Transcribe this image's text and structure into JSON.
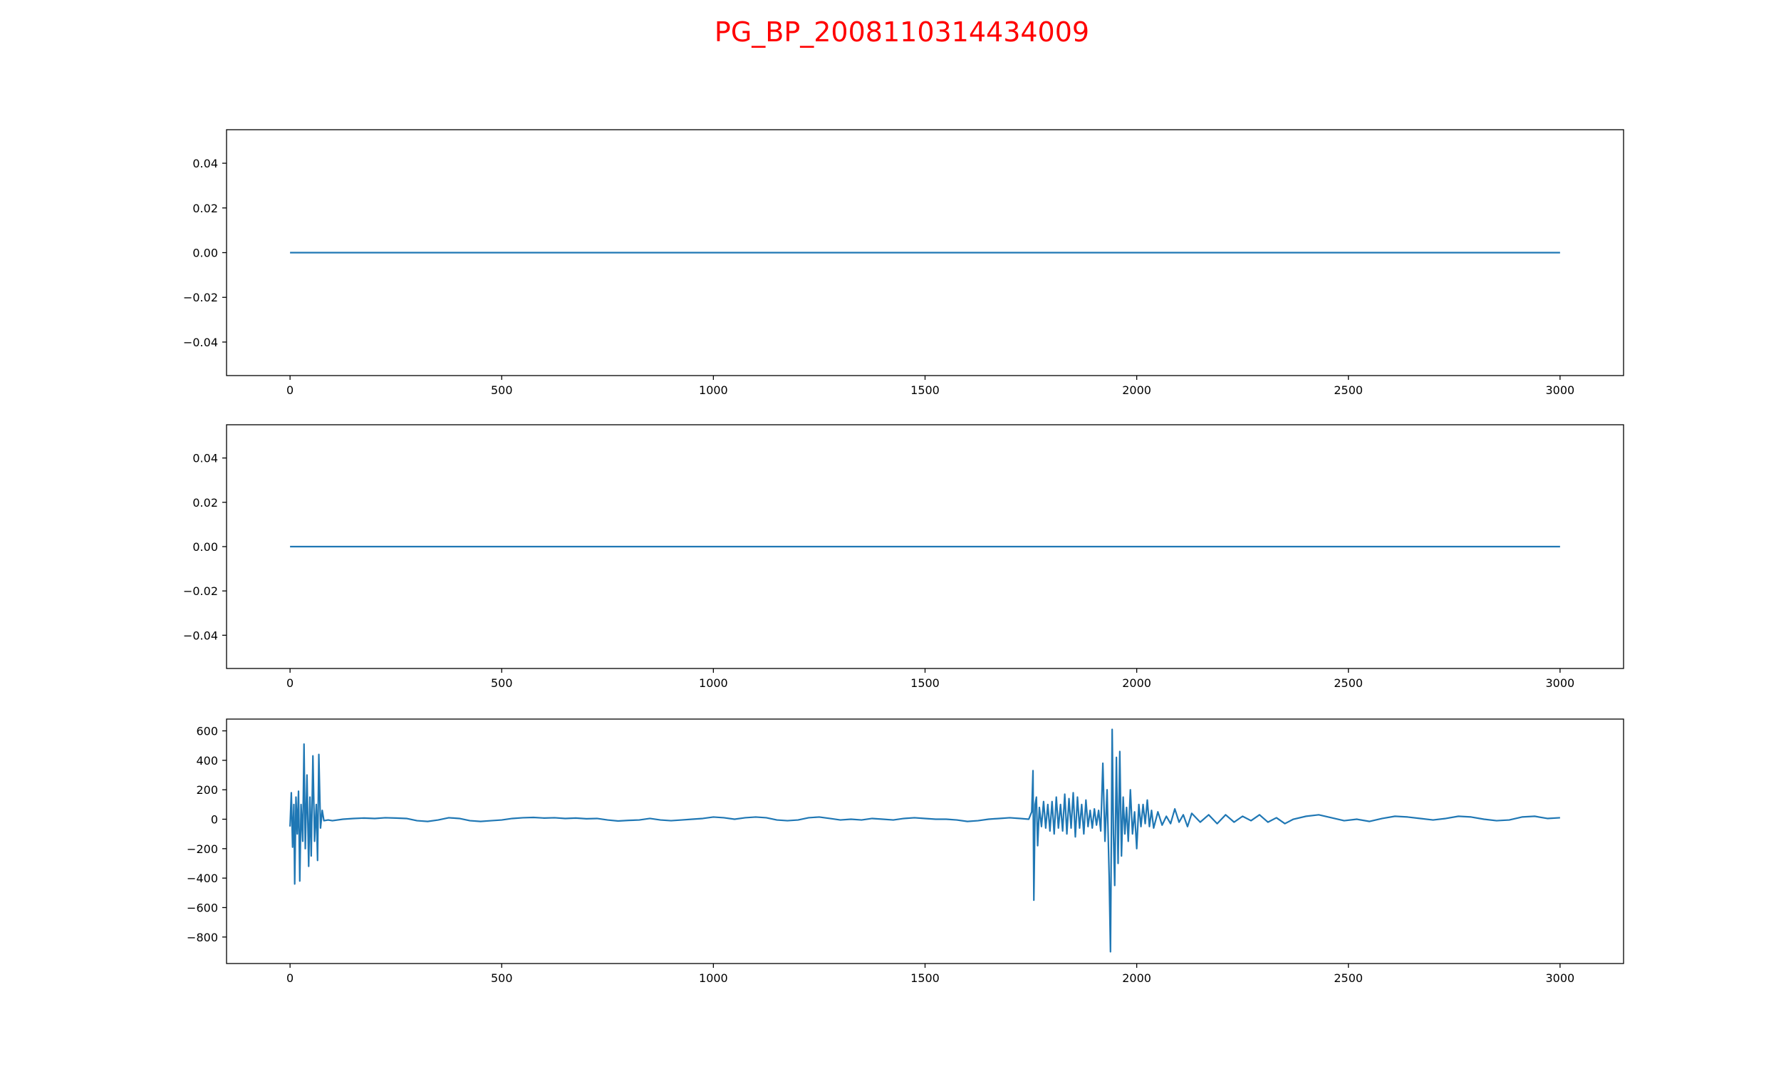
{
  "title": "PG_BP_2008110314434009",
  "title_color": "#ff0000",
  "chart_data": [
    {
      "type": "line",
      "x": [
        0,
        3000
      ],
      "series": [
        {
          "color": "#1f77b4",
          "values": [
            0,
            0
          ]
        }
      ],
      "xlim": [
        -150,
        3150
      ],
      "xticks": [
        0,
        500,
        1000,
        1500,
        2000,
        2500,
        3000
      ],
      "ylim": [
        -0.055,
        0.055
      ],
      "yticks": [
        {
          "value": -0.04,
          "label": "−0.04"
        },
        {
          "value": -0.02,
          "label": "−0.02"
        },
        {
          "value": 0,
          "label": "0.00"
        },
        0.02,
        0.04
      ]
    },
    {
      "type": "line",
      "x": [
        0,
        3000
      ],
      "series": [
        {
          "color": "#1f77b4",
          "values": [
            0,
            0
          ]
        }
      ],
      "xlim": [
        -150,
        3150
      ],
      "xticks": [
        0,
        500,
        1000,
        1500,
        2000,
        2500,
        3000
      ],
      "ylim": [
        -0.055,
        0.055
      ],
      "yticks": [
        {
          "value": -0.04,
          "label": "−0.04"
        },
        {
          "value": -0.02,
          "label": "−0.02"
        },
        {
          "value": 0,
          "label": "0.00"
        },
        0.02,
        0.04
      ]
    },
    {
      "type": "line",
      "x": [
        0,
        3,
        6,
        9,
        11,
        14,
        17,
        20,
        23,
        26,
        30,
        33,
        36,
        40,
        44,
        47,
        50,
        54,
        58,
        62,
        65,
        68,
        72,
        76,
        80,
        90,
        100,
        125,
        150,
        175,
        200,
        225,
        250,
        275,
        300,
        325,
        350,
        375,
        400,
        425,
        450,
        475,
        500,
        525,
        550,
        575,
        600,
        625,
        650,
        675,
        700,
        725,
        750,
        775,
        800,
        825,
        850,
        875,
        900,
        925,
        950,
        975,
        1000,
        1025,
        1050,
        1075,
        1100,
        1125,
        1150,
        1175,
        1200,
        1225,
        1250,
        1275,
        1300,
        1325,
        1350,
        1375,
        1400,
        1425,
        1450,
        1475,
        1500,
        1525,
        1550,
        1575,
        1600,
        1625,
        1650,
        1675,
        1700,
        1725,
        1745,
        1752,
        1755,
        1757,
        1760,
        1763,
        1766,
        1770,
        1775,
        1780,
        1785,
        1790,
        1795,
        1800,
        1805,
        1810,
        1815,
        1820,
        1825,
        1830,
        1835,
        1840,
        1845,
        1850,
        1855,
        1860,
        1865,
        1870,
        1875,
        1880,
        1885,
        1890,
        1895,
        1900,
        1905,
        1910,
        1915,
        1920,
        1925,
        1930,
        1935,
        1938,
        1942,
        1945,
        1948,
        1952,
        1956,
        1960,
        1964,
        1968,
        1972,
        1976,
        1980,
        1985,
        1990,
        1995,
        2000,
        2005,
        2010,
        2015,
        2020,
        2025,
        2030,
        2035,
        2040,
        2050,
        2060,
        2070,
        2080,
        2090,
        2100,
        2110,
        2120,
        2130,
        2150,
        2170,
        2190,
        2210,
        2230,
        2250,
        2270,
        2290,
        2310,
        2330,
        2350,
        2370,
        2400,
        2430,
        2460,
        2490,
        2520,
        2550,
        2580,
        2610,
        2640,
        2670,
        2700,
        2730,
        2760,
        2790,
        2820,
        2850,
        2880,
        2910,
        2940,
        2970,
        3000
      ],
      "series": [
        {
          "color": "#1f77b4",
          "values": [
            -50,
            180,
            -190,
            100,
            -440,
            150,
            -100,
            190,
            -420,
            100,
            -150,
            510,
            -200,
            300,
            -320,
            150,
            -250,
            430,
            -150,
            100,
            -280,
            440,
            -60,
            60,
            -10,
            -5,
            -10,
            0,
            5,
            8,
            5,
            10,
            8,
            5,
            -10,
            -15,
            -5,
            10,
            5,
            -10,
            -15,
            -10,
            -5,
            5,
            10,
            12,
            8,
            10,
            5,
            8,
            3,
            5,
            -5,
            -12,
            -8,
            -5,
            5,
            -5,
            -10,
            -5,
            0,
            5,
            15,
            10,
            0,
            10,
            15,
            10,
            -5,
            -10,
            -5,
            10,
            15,
            5,
            -5,
            0,
            -5,
            5,
            0,
            -5,
            5,
            10,
            5,
            0,
            0,
            -5,
            -15,
            -10,
            0,
            5,
            10,
            5,
            0,
            50,
            330,
            -550,
            100,
            150,
            -180,
            80,
            -50,
            120,
            -60,
            100,
            -80,
            120,
            -100,
            150,
            -60,
            100,
            -80,
            170,
            -100,
            140,
            -60,
            180,
            -120,
            150,
            -60,
            100,
            -100,
            130,
            -50,
            60,
            -60,
            70,
            -40,
            60,
            -80,
            380,
            -150,
            200,
            -400,
            -900,
            610,
            -100,
            -450,
            420,
            -300,
            460,
            -250,
            150,
            -100,
            80,
            -150,
            200,
            -100,
            50,
            -200,
            100,
            -50,
            100,
            -30,
            130,
            -50,
            60,
            -60,
            50,
            -40,
            20,
            -30,
            70,
            -20,
            30,
            -50,
            40,
            -20,
            30,
            -30,
            30,
            -20,
            20,
            -10,
            30,
            -20,
            10,
            -30,
            0,
            20,
            30,
            10,
            -10,
            0,
            -15,
            5,
            20,
            15,
            5,
            -5,
            5,
            20,
            15,
            0,
            -10,
            -5,
            15,
            20,
            5,
            10
          ]
        }
      ],
      "xlim": [
        -150,
        3150
      ],
      "xticks": [
        0,
        500,
        1000,
        1500,
        2000,
        2500,
        3000
      ],
      "ylim": [
        -980,
        680
      ],
      "yticks": [
        {
          "value": -800,
          "label": "−800"
        },
        {
          "value": -600,
          "label": "−600"
        },
        {
          "value": -400,
          "label": "−400"
        },
        {
          "value": -200,
          "label": "−200"
        },
        0,
        200,
        400,
        600
      ]
    }
  ]
}
